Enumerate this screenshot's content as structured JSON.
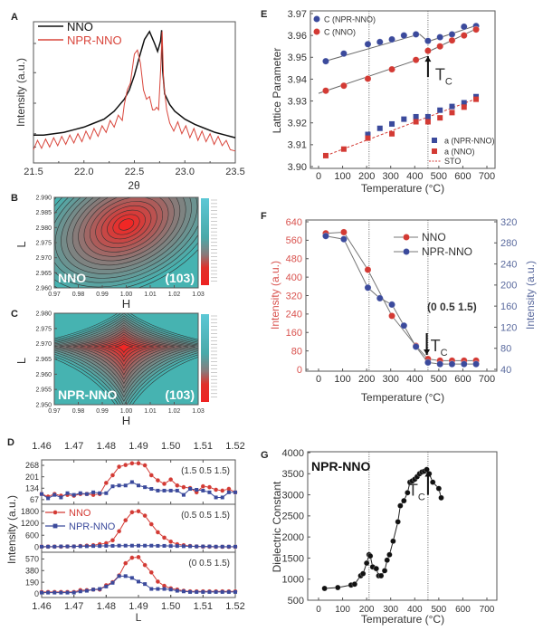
{
  "chart_data": [
    {
      "panel": "A",
      "type": "line",
      "xlabel": "2θ",
      "ylabel": "Intensity (a.u.)",
      "xlim": [
        21.5,
        23.5
      ],
      "ylim": [
        0,
        1.05
      ],
      "yscale": "log (unlabeled)",
      "xticks": [
        "21.5",
        "22.0",
        "22.5",
        "23.0",
        "23.5"
      ],
      "legend_position": "top-left",
      "series": [
        {
          "name": "NNO",
          "color": "#111111",
          "x": [
            21.5,
            21.6,
            21.7,
            21.8,
            21.9,
            22.0,
            22.1,
            22.2,
            22.3,
            22.4,
            22.45,
            22.5,
            22.55,
            22.6,
            22.65,
            22.7,
            22.73,
            22.76,
            22.77,
            22.78,
            22.8,
            22.85,
            22.9,
            23.0,
            23.1,
            23.2,
            23.3,
            23.4,
            23.5
          ],
          "y": [
            0.21,
            0.21,
            0.22,
            0.23,
            0.25,
            0.27,
            0.3,
            0.33,
            0.39,
            0.48,
            0.55,
            0.66,
            0.8,
            0.93,
            0.99,
            0.9,
            0.84,
            0.92,
            1.0,
            0.7,
            0.52,
            0.44,
            0.39,
            0.33,
            0.29,
            0.26,
            0.23,
            0.21,
            0.19
          ]
        },
        {
          "name": "NPR-NNO",
          "color": "#d9463c",
          "x": [
            21.5,
            21.54,
            21.58,
            21.62,
            21.66,
            21.7,
            21.74,
            21.78,
            21.82,
            21.86,
            21.9,
            21.94,
            21.98,
            22.02,
            22.06,
            22.1,
            22.14,
            22.18,
            22.22,
            22.26,
            22.3,
            22.34,
            22.38,
            22.4,
            22.43,
            22.46,
            22.5,
            22.53,
            22.56,
            22.59,
            22.62,
            22.65,
            22.68,
            22.7,
            22.72,
            22.74,
            22.76,
            22.775,
            22.79,
            22.82,
            22.85,
            22.89,
            22.93,
            22.97,
            23.01,
            23.05,
            23.09,
            23.13,
            23.17,
            23.21,
            23.25,
            23.29,
            23.33,
            23.37,
            23.41,
            23.45,
            23.5
          ],
          "y": [
            0.1,
            0.17,
            0.11,
            0.18,
            0.12,
            0.19,
            0.13,
            0.2,
            0.14,
            0.21,
            0.15,
            0.22,
            0.16,
            0.24,
            0.18,
            0.26,
            0.2,
            0.28,
            0.23,
            0.32,
            0.27,
            0.36,
            0.32,
            0.44,
            0.55,
            0.6,
            0.82,
            0.85,
            0.75,
            0.55,
            0.48,
            0.5,
            0.4,
            0.4,
            0.42,
            0.4,
            0.7,
            0.99,
            0.6,
            0.4,
            0.3,
            0.24,
            0.31,
            0.22,
            0.28,
            0.19,
            0.26,
            0.17,
            0.24,
            0.16,
            0.22,
            0.14,
            0.2,
            0.13,
            0.17,
            0.1,
            0.09
          ]
        }
      ]
    },
    {
      "panel": "B",
      "type": "heatmap",
      "xlabel": "H",
      "ylabel": "L",
      "xlim": [
        0.97,
        1.03
      ],
      "ylim": [
        2.96,
        2.99
      ],
      "xticks": [
        "0.97",
        "0.98",
        "0.99",
        "1.00",
        "1.01",
        "1.02",
        "1.03"
      ],
      "yticks": [
        "2.960",
        "2.965",
        "2.970",
        "2.975",
        "2.980",
        "2.985",
        "2.990"
      ],
      "peak": {
        "H": 1.0,
        "L": 2.981
      },
      "annotations": [
        "NNO",
        "(103)"
      ]
    },
    {
      "panel": "C",
      "type": "heatmap",
      "xlabel": "H",
      "ylabel": "L",
      "xlim": [
        0.97,
        1.03
      ],
      "ylim": [
        2.95,
        2.98
      ],
      "xticks": [
        "0.97",
        "0.98",
        "0.99",
        "1.00",
        "1.01",
        "1.02",
        "1.03"
      ],
      "yticks": [
        "2.950",
        "2.955",
        "2.960",
        "2.965",
        "2.970",
        "2.975",
        "2.980"
      ],
      "peak": {
        "H": 0.999,
        "L": 2.969
      },
      "annotations": [
        "NPR-NNO",
        "(103)"
      ]
    },
    {
      "panel": "D",
      "type": "line",
      "xlabel": "L",
      "ylabel": "Intensity (a.u.)",
      "xlim": [
        1.46,
        1.52
      ],
      "xticks": [
        "1.46",
        "1.47",
        "1.48",
        "1.49",
        "1.50",
        "1.51",
        "1.52"
      ],
      "legend": [
        "NNO",
        "NPR-NNO"
      ],
      "x": [
        1.46,
        1.462,
        1.464,
        1.466,
        1.468,
        1.47,
        1.472,
        1.474,
        1.476,
        1.478,
        1.48,
        1.482,
        1.484,
        1.486,
        1.488,
        1.49,
        1.492,
        1.494,
        1.496,
        1.498,
        1.5,
        1.502,
        1.504,
        1.506,
        1.508,
        1.51,
        1.512,
        1.514,
        1.516,
        1.518,
        1.52
      ],
      "subplots": [
        {
          "label": "(1.5 0.5 1.5)",
          "yticks": [
            "67",
            "134",
            "201",
            "268"
          ],
          "ylim": [
            40,
            300
          ],
          "series": [
            {
              "name": "NNO",
              "values": [
                100,
                85,
                100,
                90,
                95,
                90,
                100,
                100,
                95,
                100,
                165,
                210,
                260,
                270,
                280,
                280,
                268,
                210,
                180,
                160,
                185,
                150,
                140,
                135,
                110,
                145,
                140,
                125,
                120,
                130,
                110
              ]
            },
            {
              "name": "NPR-NNO",
              "values": [
                100,
                75,
                95,
                80,
                105,
                95,
                105,
                100,
                110,
                105,
                105,
                145,
                150,
                150,
                170,
                150,
                140,
                130,
                120,
                120,
                120,
                120,
                95,
                130,
                125,
                120,
                110,
                80,
                80,
                110,
                110
              ]
            }
          ]
        },
        {
          "label": "(0.5 0.5 1.5)",
          "yticks": [
            "0",
            "600",
            "1200",
            "1800"
          ],
          "ylim": [
            -250,
            2150
          ],
          "series": [
            {
              "name": "NNO",
              "values": [
                30,
                30,
                30,
                30,
                40,
                40,
                60,
                80,
                100,
                150,
                200,
                350,
                800,
                1350,
                1750,
                1800,
                1580,
                1150,
                750,
                480,
                280,
                150,
                100,
                60,
                40,
                30,
                30,
                20,
                20,
                20,
                20
              ]
            },
            {
              "name": "NPR-NNO",
              "values": [
                30,
                30,
                30,
                40,
                40,
                40,
                50,
                50,
                60,
                60,
                70,
                70,
                80,
                80,
                80,
                80,
                80,
                80,
                70,
                70,
                60,
                60,
                50,
                50,
                40,
                40,
                40,
                30,
                30,
                30,
                30
              ]
            }
          ]
        },
        {
          "label": "(0 0.5 1.5)",
          "yticks": [
            "0",
            "190",
            "380",
            "570"
          ],
          "ylim": [
            -60,
            680
          ],
          "series": [
            {
              "name": "NNO",
              "values": [
                30,
                30,
                30,
                30,
                30,
                30,
                60,
                60,
                70,
                70,
                140,
                190,
                300,
                500,
                590,
                600,
                470,
                350,
                200,
                130,
                90,
                70,
                50,
                40,
                40,
                40,
                40,
                40,
                40,
                40,
                40
              ]
            },
            {
              "name": "NPR-NNO",
              "values": [
                20,
                20,
                20,
                20,
                20,
                20,
                40,
                50,
                70,
                80,
                120,
                180,
                290,
                290,
                260,
                200,
                160,
                80,
                80,
                80,
                70,
                50,
                40,
                30,
                30,
                30,
                30,
                30,
                30,
                30,
                30
              ]
            }
          ]
        }
      ]
    },
    {
      "panel": "E",
      "type": "scatter",
      "xlabel": "Temperature (°C)",
      "ylabel": "Lattice Parameter",
      "xlim": [
        -40,
        740
      ],
      "ylim": [
        3.9,
        3.97
      ],
      "xticks": [
        "0",
        "100",
        "200",
        "300",
        "400",
        "500",
        "600",
        "700"
      ],
      "yticks": [
        "3.90",
        "3.91",
        "3.92",
        "3.93",
        "3.94",
        "3.95",
        "3.96",
        "3.97"
      ],
      "vlines": [
        210,
        455
      ],
      "annotation": {
        "main": "T",
        "sub": "C",
        "x": 455
      },
      "series": [
        {
          "name": "C (NPR-NNO)",
          "marker": "circle",
          "color": "#3b4a9c",
          "x": [
            30,
            105,
            205,
            255,
            305,
            355,
            405,
            455,
            505,
            555,
            605,
            655
          ],
          "y": [
            3.9482,
            3.9517,
            3.956,
            3.957,
            3.9582,
            3.96,
            3.9605,
            3.9575,
            3.9592,
            3.9605,
            3.964,
            3.9643
          ]
        },
        {
          "name": "C (NNO)",
          "marker": "circle",
          "color": "#d33a34",
          "x": [
            30,
            105,
            205,
            305,
            405,
            455,
            505,
            555,
            605,
            655
          ],
          "y": [
            3.9347,
            3.937,
            3.9402,
            3.9445,
            3.9488,
            3.953,
            3.955,
            3.9577,
            3.96,
            3.9627
          ]
        },
        {
          "name": "a (NPR-NNO)",
          "marker": "square",
          "color": "#3b4a9c",
          "x": [
            205,
            255,
            305,
            355,
            405,
            455,
            505,
            555,
            605,
            655
          ],
          "y": [
            3.9147,
            3.9175,
            3.9195,
            3.9217,
            3.9228,
            3.9228,
            3.9258,
            3.9275,
            3.9292,
            3.932
          ]
        },
        {
          "name": "a (NNO)",
          "marker": "square",
          "color": "#d33a34",
          "x": [
            30,
            105,
            205,
            305,
            405,
            455,
            505,
            555,
            605,
            655
          ],
          "y": [
            3.905,
            3.908,
            3.913,
            3.915,
            3.9205,
            3.9205,
            3.9223,
            3.9247,
            3.9272,
            3.9308
          ]
        },
        {
          "name": "STO",
          "marker": "dashed-line",
          "color": "#d33a34",
          "x": [
            30,
            655
          ],
          "y": [
            3.905,
            3.931
          ]
        }
      ]
    },
    {
      "panel": "F",
      "type": "line",
      "xlabel": "Temperature (°C)",
      "ylabel_left": "Intensity (a.u.)",
      "ylabel_right": "Intensity (a.u.)",
      "xlim": [
        -40,
        740
      ],
      "ylim_left": [
        0,
        640
      ],
      "ylim_right": [
        40,
        320
      ],
      "xticks": [
        "0",
        "100",
        "200",
        "300",
        "400",
        "500",
        "600",
        "700"
      ],
      "yticks_left": [
        "0",
        "80",
        "160",
        "240",
        "320",
        "400",
        "480",
        "560",
        "640"
      ],
      "yticks_right": [
        "40",
        "80",
        "120",
        "160",
        "200",
        "240",
        "280",
        "320"
      ],
      "left_color": "#d9534f",
      "right_color": "#5a6a9e",
      "vlines": [
        210,
        455
      ],
      "label": "(0 0.5 1.5)",
      "annotation": {
        "main": "T",
        "sub": "C",
        "x": 450
      },
      "series": [
        {
          "name": "NNO",
          "axis": "left",
          "color": "#d33a34",
          "x": [
            30,
            105,
            205,
            305,
            405,
            455,
            505,
            555,
            605,
            655
          ],
          "y": [
            590,
            595,
            432,
            232,
            102,
            45,
            38,
            38,
            38,
            38
          ]
        },
        {
          "name": "NPR-NNO",
          "axis": "right",
          "color": "#3b4a9c",
          "x": [
            30,
            105,
            205,
            255,
            305,
            355,
            405,
            455,
            505,
            555,
            605,
            655
          ],
          "y": [
            293,
            287,
            195,
            175,
            163,
            123,
            83,
            53,
            50,
            50,
            50,
            50
          ]
        }
      ]
    },
    {
      "panel": "G",
      "type": "line",
      "xlabel": "Temperature (°C)",
      "ylabel": "Dielectric Constant",
      "xlim": [
        -40,
        740
      ],
      "ylim": [
        500,
        4000
      ],
      "xticks": [
        "0",
        "100",
        "200",
        "300",
        "400",
        "500",
        "600",
        "700"
      ],
      "yticks": [
        "500",
        "1000",
        "1500",
        "2000",
        "2500",
        "3000",
        "3500",
        "4000"
      ],
      "vlines": [
        210,
        455
      ],
      "label": "NPR-NNO",
      "annotation": {
        "main": "T",
        "sub": "C",
        "x": 455
      },
      "series": [
        {
          "name": "NPR-NNO",
          "color": "#111111",
          "x": [
            25,
            80,
            135,
            150,
            175,
            185,
            200,
            210,
            215,
            225,
            240,
            250,
            260,
            275,
            285,
            295,
            310,
            330,
            340,
            355,
            370,
            380,
            390,
            400,
            410,
            420,
            430,
            440,
            450,
            460,
            475,
            500,
            510
          ],
          "y": [
            780,
            800,
            860,
            880,
            1080,
            1130,
            1380,
            1580,
            1550,
            1290,
            1250,
            1080,
            1080,
            1200,
            1450,
            1580,
            1900,
            2360,
            2740,
            2860,
            3050,
            3300,
            3330,
            3370,
            3430,
            3500,
            3540,
            3560,
            3600,
            3500,
            3300,
            3150,
            2930
          ]
        }
      ]
    }
  ]
}
